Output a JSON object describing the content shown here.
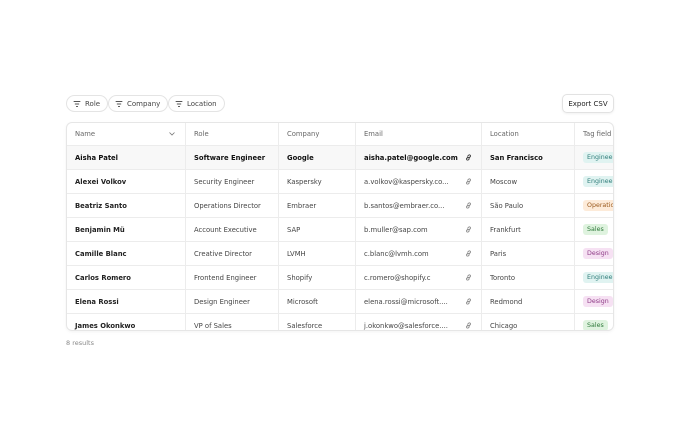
{
  "filters": [
    "Role",
    "Company",
    "Location"
  ],
  "export_button": "Export CSV",
  "table": {
    "columns": [
      "Name",
      "Role",
      "Company",
      "Email",
      "Location",
      "Tag field"
    ],
    "rows": [
      [
        "Aisha Patel",
        "Software Engineer",
        "Google",
        "aisha.patel@google.com",
        "San Francisco",
        {
          "text": "Engineering",
          "color": "#2f7d7a",
          "background": "#e0f3f1"
        }
      ],
      [
        "Alexei Volkov",
        "Security Engineer",
        "Kaspersky",
        "a.volkov@kaspersky.co...",
        "Moscow",
        {
          "text": "Engineering",
          "color": "#2f7d7a",
          "background": "#e0f3f1"
        }
      ],
      [
        "Beatriz Santo",
        "Operations Director",
        "Embraer",
        "b.santos@embraer.co...",
        "São Paulo",
        {
          "text": "Operations",
          "color": "#9a5a1e",
          "background": "#fdebd9"
        }
      ],
      [
        "Benjamin Mü",
        "Account Executive",
        "SAP",
        "b.muller@sap.com",
        "Frankfurt",
        {
          "text": "Sales",
          "color": "#2f7a3b",
          "background": "#dff3df"
        }
      ],
      [
        "Camille Blanc",
        "Creative Director",
        "LVMH",
        "c.blanc@lvmh.com",
        "Paris",
        {
          "text": "Design",
          "color": "#8e3a86",
          "background": "#f6e1f3"
        }
      ],
      [
        "Carlos Romero",
        "Frontend Engineer",
        "Shopify",
        "c.romero@shopify.c",
        "Toronto",
        {
          "text": "Engineering",
          "color": "#2f7d7a",
          "background": "#e0f3f1"
        }
      ],
      [
        "Elena Rossi",
        "Design Engineer",
        "Microsoft",
        "elena.rossi@microsoft....",
        "Redmond",
        {
          "text": "Design",
          "color": "#8e3a86",
          "background": "#f6e1f3"
        }
      ],
      [
        "James Okonkwo",
        "VP of Sales",
        "Salesforce",
        "j.okonkwo@salesforce....",
        "Chicago",
        {
          "text": "Sales",
          "color": "#2f7a3b",
          "background": "#dff3df"
        }
      ]
    ]
  },
  "footer": "8 results"
}
